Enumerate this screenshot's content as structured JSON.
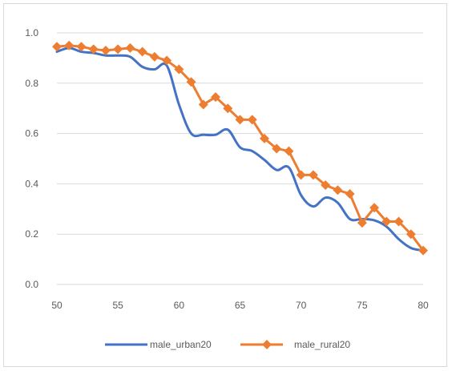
{
  "chart_data": {
    "type": "line",
    "title": "",
    "xlabel": "",
    "ylabel": "",
    "xlim": [
      50,
      80
    ],
    "ylim": [
      0,
      1
    ],
    "x_ticks": [
      "50",
      "55",
      "60",
      "65",
      "70",
      "75",
      "80"
    ],
    "y_ticks": [
      "0.0",
      "0.2",
      "0.4",
      "0.6",
      "0.8",
      "1.0"
    ],
    "grid": "horizontal",
    "legend_position": "bottom",
    "series": [
      {
        "name": "male_urban20",
        "color": "#4472c4",
        "marker": "none",
        "smooth": true,
        "x": [
          50,
          51,
          52,
          53,
          54,
          55,
          56,
          57,
          58,
          59,
          60,
          61,
          62,
          63,
          64,
          65,
          66,
          67,
          68,
          69,
          70,
          71,
          72,
          73,
          74,
          75,
          76,
          77,
          78,
          79,
          80
        ],
        "y": [
          0.925,
          0.94,
          0.925,
          0.92,
          0.91,
          0.91,
          0.905,
          0.865,
          0.855,
          0.87,
          0.715,
          0.6,
          0.595,
          0.595,
          0.615,
          0.545,
          0.53,
          0.495,
          0.455,
          0.465,
          0.355,
          0.31,
          0.345,
          0.325,
          0.26,
          0.26,
          0.255,
          0.23,
          0.18,
          0.145,
          0.135
        ]
      },
      {
        "name": "male_rural20",
        "color": "#ed7d31",
        "marker": "diamond",
        "smooth": false,
        "x": [
          50,
          51,
          52,
          53,
          54,
          55,
          56,
          57,
          58,
          59,
          60,
          61,
          62,
          63,
          64,
          65,
          66,
          67,
          68,
          69,
          70,
          71,
          72,
          73,
          74,
          75,
          76,
          77,
          78,
          79,
          80
        ],
        "y": [
          0.945,
          0.95,
          0.945,
          0.935,
          0.93,
          0.935,
          0.94,
          0.925,
          0.905,
          0.89,
          0.855,
          0.805,
          0.715,
          0.745,
          0.7,
          0.655,
          0.655,
          0.58,
          0.54,
          0.53,
          0.435,
          0.435,
          0.395,
          0.375,
          0.36,
          0.245,
          0.305,
          0.25,
          0.25,
          0.2,
          0.135
        ]
      }
    ]
  }
}
